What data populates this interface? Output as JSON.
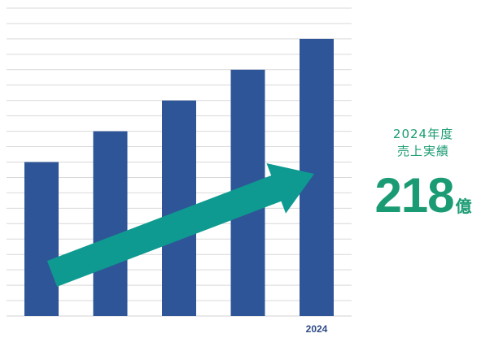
{
  "chart_data": {
    "type": "bar",
    "categories": [
      "",
      "",
      "",
      "",
      "2024"
    ],
    "values": [
      5,
      6,
      7,
      8,
      9
    ],
    "ylim": [
      0,
      10
    ],
    "grid": true,
    "legend": "none",
    "annotations": [
      "upward-trend-arrow"
    ]
  },
  "summary": {
    "caption_line1": "2024年度",
    "caption_line2": "売上実績",
    "value": "218",
    "unit": "億"
  },
  "colors": {
    "bar": "#2e5597",
    "arrow": "#0e9a90",
    "grid": "#d9d9d9",
    "accent_text": "#1a9b73",
    "tick_text": "#2e4a86"
  }
}
